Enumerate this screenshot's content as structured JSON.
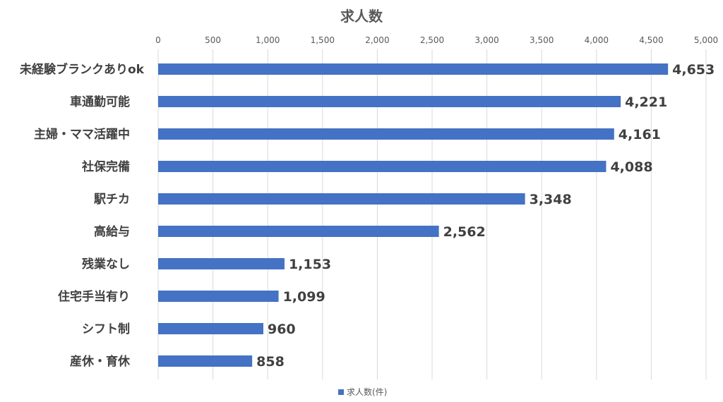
{
  "chart_data": {
    "type": "bar",
    "orientation": "horizontal",
    "title": "求人数",
    "categories": [
      "未経験ブランクありok",
      "車通勤可能",
      "主婦・ママ活躍中",
      "社保完備",
      "駅チカ",
      "高給与",
      "残業なし",
      "住宅手当有り",
      "シフト制",
      "産休・育休"
    ],
    "series": [
      {
        "name": "求人数(件)",
        "values": [
          4653,
          4221,
          4161,
          4088,
          3348,
          2562,
          1153,
          1099,
          960,
          858
        ],
        "color": "#4472c4"
      }
    ],
    "value_labels": [
      "4,653",
      "4,221",
      "4,161",
      "4,088",
      "3,348",
      "2,562",
      "1,153",
      "1,099",
      "960",
      "858"
    ],
    "xlim": [
      0,
      5000
    ],
    "ticks": [
      0,
      500,
      1000,
      1500,
      2000,
      2500,
      3000,
      3500,
      4000,
      4500,
      5000
    ],
    "tick_labels": [
      "0",
      "500",
      "1,000",
      "1,500",
      "2,000",
      "2,500",
      "3,000",
      "3,500",
      "4,000",
      "4,500",
      "5,000"
    ],
    "axis_position": "top",
    "grid": true,
    "legend": "bottom-center"
  }
}
